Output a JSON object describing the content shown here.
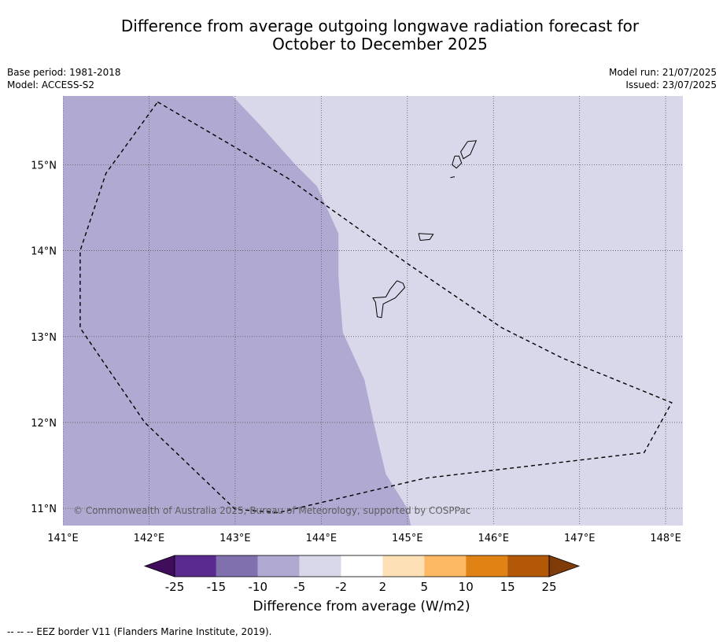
{
  "title_line1": "Difference from average outgoing longwave radiation forecast for",
  "title_line2": "October to December 2025",
  "meta_left": [
    "Base period: 1981-2018",
    "Model: ACCESS-S2"
  ],
  "meta_right": [
    "Model run: 21/07/2025",
    "Issued: 23/07/2025"
  ],
  "copyright": "© Commonwealth of Australia 2025, Bureau of Meteorology, supported by COSPPac",
  "colorbar": {
    "label": "Difference from average (W/m2)",
    "ticks": [
      "-25",
      "-15",
      "-10",
      "-5",
      "-2",
      "2",
      "5",
      "10",
      "15",
      "25"
    ],
    "colors": [
      "#3f0d5c",
      "#5b2a8e",
      "#8170ae",
      "#b0aad2",
      "#d8d8ea",
      "#ffffff",
      "#fee0b6",
      "#fdb863",
      "#e08214",
      "#b35806",
      "#7f3b08"
    ]
  },
  "footnote": "--  --  -- EEZ border V11 (Flanders Marine Institute, 2019).",
  "chart_data": {
    "type": "heatmap",
    "x_tick_labels": [
      "141°E",
      "142°E",
      "143°E",
      "144°E",
      "145°E",
      "146°E",
      "147°E",
      "148°E"
    ],
    "y_tick_labels": [
      "11°N",
      "12°N",
      "13°N",
      "14°N",
      "15°N"
    ],
    "xlim": [
      141,
      148.2
    ],
    "ylim": [
      10.8,
      15.8
    ],
    "fields": [
      {
        "category": "-10 to -5",
        "color": "#b0aad2",
        "region": "west"
      },
      {
        "category": "-5 to -2",
        "color": "#d8d8ea",
        "region": "east"
      }
    ],
    "boundary_lonlat": [
      [
        142.97,
        15.8
      ],
      [
        143.3,
        15.45
      ],
      [
        143.7,
        15.0
      ],
      [
        143.95,
        14.75
      ],
      [
        144.2,
        14.2
      ],
      [
        144.2,
        13.9
      ],
      [
        144.2,
        13.7
      ],
      [
        144.25,
        13.05
      ],
      [
        144.5,
        12.5
      ],
      [
        144.62,
        11.95
      ],
      [
        144.75,
        11.4
      ],
      [
        145.0,
        11.0
      ],
      [
        145.04,
        10.8
      ]
    ],
    "eez_border_lonlat": [
      [
        142.1,
        15.73
      ],
      [
        143.6,
        14.85
      ],
      [
        145.0,
        13.85
      ],
      [
        146.1,
        13.1
      ],
      [
        146.8,
        12.75
      ],
      [
        148.07,
        12.23
      ],
      [
        147.75,
        11.65
      ],
      [
        145.2,
        11.35
      ],
      [
        143.5,
        10.95
      ],
      [
        143.0,
        10.99
      ],
      [
        141.95,
        12.0
      ],
      [
        141.2,
        13.1
      ],
      [
        141.2,
        14.0
      ],
      [
        141.5,
        14.9
      ],
      [
        142.1,
        15.73
      ]
    ],
    "islands_lonlat": [
      [
        [
          145.7,
          15.27
        ],
        [
          145.8,
          15.28
        ],
        [
          145.73,
          15.12
        ],
        [
          145.65,
          15.07
        ],
        [
          145.62,
          15.15
        ],
        [
          145.7,
          15.27
        ]
      ],
      [
        [
          145.55,
          15.1
        ],
        [
          145.6,
          15.1
        ],
        [
          145.63,
          15.02
        ],
        [
          145.57,
          14.96
        ],
        [
          145.52,
          15.0
        ],
        [
          145.55,
          15.1
        ]
      ],
      [
        [
          145.5,
          14.85
        ],
        [
          145.55,
          14.86
        ]
      ],
      [
        [
          145.13,
          14.2
        ],
        [
          145.3,
          14.19
        ],
        [
          145.26,
          14.13
        ],
        [
          145.15,
          14.12
        ],
        [
          145.13,
          14.2
        ]
      ],
      [
        [
          144.88,
          13.65
        ],
        [
          144.95,
          13.62
        ],
        [
          144.97,
          13.57
        ],
        [
          144.86,
          13.45
        ],
        [
          144.72,
          13.38
        ],
        [
          144.7,
          13.22
        ],
        [
          144.65,
          13.23
        ],
        [
          144.63,
          13.4
        ],
        [
          144.6,
          13.45
        ],
        [
          144.75,
          13.46
        ],
        [
          144.8,
          13.55
        ],
        [
          144.88,
          13.65
        ]
      ]
    ]
  }
}
